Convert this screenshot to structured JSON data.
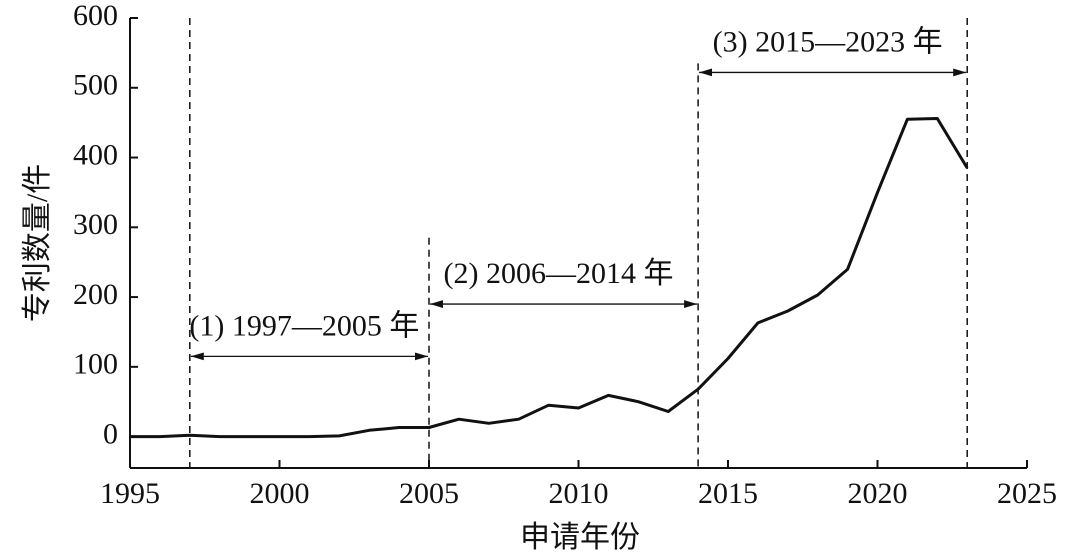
{
  "chart_data": {
    "type": "line",
    "x_label": "申请年份",
    "y_label": "专利数量/件",
    "x": [
      1995,
      1996,
      1997,
      1998,
      1999,
      2000,
      2001,
      2002,
      2003,
      2004,
      2005,
      2006,
      2007,
      2008,
      2009,
      2010,
      2011,
      2012,
      2013,
      2014,
      2015,
      2016,
      2017,
      2018,
      2019,
      2020,
      2021,
      2022,
      2023
    ],
    "values": [
      0,
      0,
      2,
      0,
      0,
      0,
      0,
      1,
      9,
      13,
      13,
      25,
      19,
      25,
      45,
      41,
      59,
      50,
      36,
      68,
      112,
      163,
      180,
      203,
      240,
      350,
      455,
      456,
      385
    ],
    "color": "#111111",
    "xlim": [
      1995,
      2025
    ],
    "xticks": [
      1995,
      2000,
      2005,
      2010,
      2015,
      2020,
      2025
    ],
    "ylim": [
      -45,
      600
    ],
    "yticks": [
      0,
      100,
      200,
      300,
      400,
      500,
      600
    ],
    "vlines": [
      {
        "x": 1997,
        "top": 600
      },
      {
        "x": 2005,
        "top": 285
      },
      {
        "x": 2014,
        "top": 535
      },
      {
        "x": 2023,
        "top": 600
      }
    ],
    "annotations": [
      {
        "text": "(1) 1997—2005 年",
        "x_start": 1997,
        "x_end": 2005,
        "y": 115
      },
      {
        "text": "(2) 2006—2014 年",
        "x_start": 2005,
        "x_end": 2014,
        "y": 190
      },
      {
        "text": "(3) 2015—2023 年",
        "x_start": 2014,
        "x_end": 2023,
        "y": 522
      }
    ]
  }
}
